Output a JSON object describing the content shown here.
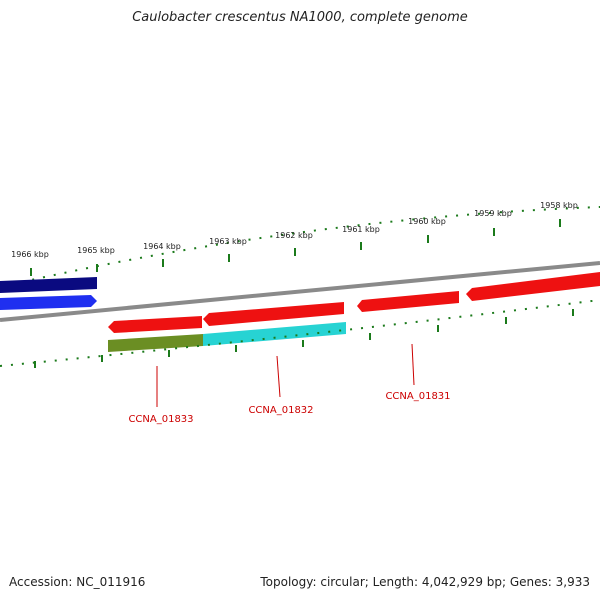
{
  "title": "Caulobacter crescentus NA1000, complete genome",
  "accession_line": "Accession: NC_011916",
  "info_line": "Topology: circular; Length: 4,042,929 bp; Genes: 3,933",
  "ticks_outer": [
    "1966 kbp",
    "1965 kbp",
    "1964 kbp",
    "1963 kbp",
    "1962 kbp",
    "1961 kbp",
    "1960 kbp",
    "1959 kbp",
    "1958 kbp"
  ],
  "genes": [
    {
      "label": "CCNA_01833",
      "strand": "reverse",
      "color": "#ee1111"
    },
    {
      "label": "CCNA_01832",
      "strand": "reverse",
      "color": "#ee1111"
    },
    {
      "label": "CCNA_01831",
      "strand": "reverse",
      "color": "#ee1111"
    }
  ],
  "colors": {
    "forward_dark": "#0a0a80",
    "forward_bright": "#1f2ff0",
    "reverse": "#ee1111",
    "olive": "#6b8e23",
    "cyan": "#27d3d3",
    "tick": "#1b7a1b",
    "label_red": "#cc0000",
    "backbone": "#8a8a8a"
  }
}
